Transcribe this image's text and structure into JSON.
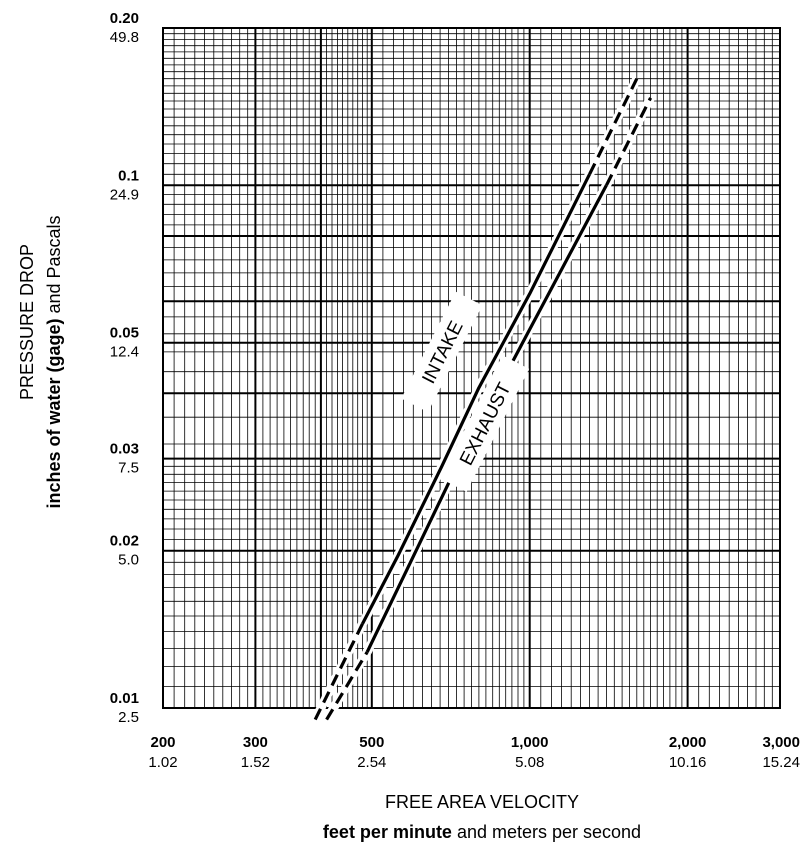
{
  "chart_data": {
    "type": "line",
    "x_scale": "log",
    "y_scale": "log",
    "xlim": [
      200,
      3000
    ],
    "ylim": [
      0.01,
      0.2
    ],
    "grid": true,
    "legend": "none",
    "x_ticks": [
      {
        "value": 200,
        "label": "200",
        "sublabel": "1.02"
      },
      {
        "value": 300,
        "label": "300",
        "sublabel": "1.52"
      },
      {
        "value": 500,
        "label": "500",
        "sublabel": "2.54"
      },
      {
        "value": 1000,
        "label": "1,000",
        "sublabel": "5.08"
      },
      {
        "value": 2000,
        "label": "2,000",
        "sublabel": "10.16"
      },
      {
        "value": 3000,
        "label": "3,000",
        "sublabel": "15.24"
      }
    ],
    "y_ticks": [
      {
        "value": 0.2,
        "label": "0.20",
        "sublabel": "49.8"
      },
      {
        "value": 0.1,
        "label": "0.1",
        "sublabel": "24.9"
      },
      {
        "value": 0.05,
        "label": "0.05",
        "sublabel": "12.4"
      },
      {
        "value": 0.03,
        "label": "0.03",
        "sublabel": "7.5"
      },
      {
        "value": 0.02,
        "label": "0.02",
        "sublabel": "5.0"
      },
      {
        "value": 0.01,
        "label": "0.01",
        "sublabel": "2.5"
      }
    ],
    "xlabel": "FREE AREA VELOCITY",
    "xlabel_bold": "feet per minute",
    "xlabel_rest": " and meters per second",
    "ylabel": "PRESSURE DROP",
    "ylabel_bold": "inches of water (gage)",
    "ylabel_rest": " and Pascals",
    "series": [
      {
        "name": "INTAKE",
        "points": [
          [
            390,
            0.0095
          ],
          [
            480,
            0.0145
          ],
          [
            560,
            0.0195
          ],
          [
            680,
            0.029
          ],
          [
            800,
            0.041
          ],
          [
            1000,
            0.062
          ],
          [
            1300,
            0.105
          ],
          [
            1600,
            0.16
          ]
        ],
        "solid_range": [
          480,
          1300
        ]
      },
      {
        "name": "EXHAUST",
        "points": [
          [
            410,
            0.0095
          ],
          [
            490,
            0.0128
          ],
          [
            600,
            0.0195
          ],
          [
            720,
            0.0285
          ],
          [
            850,
            0.039
          ],
          [
            1000,
            0.053
          ],
          [
            1400,
            0.1
          ],
          [
            1700,
            0.147
          ]
        ],
        "solid_range": [
          490,
          1400
        ]
      }
    ]
  }
}
